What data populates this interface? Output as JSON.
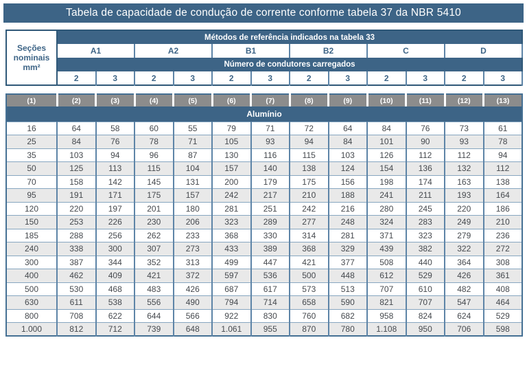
{
  "title": "Tabela de capacidade de condução de corrente conforme tabela 37 da NBR 5410",
  "colors": {
    "accent_blue": "#3d6486",
    "index_gray": "#8c8c8c",
    "row_alt_gray": "#e9e9e9",
    "grid_blue": "#5d84a7",
    "title_text": "#ffffff"
  },
  "header": {
    "sections_lines": [
      "Seções",
      "nominais",
      "mm²"
    ],
    "methods_title": "Métodos de referência indicados na tabela 33",
    "methods": [
      "A1",
      "A2",
      "B1",
      "B2",
      "C",
      "D"
    ],
    "conductors_title": "Número de condutores carregados",
    "conductors": [
      "2",
      "3",
      "2",
      "3",
      "2",
      "3",
      "2",
      "3",
      "2",
      "3",
      "2",
      "3"
    ]
  },
  "table": {
    "column_indices": [
      "(1)",
      "(2)",
      "(3)",
      "(4)",
      "(5)",
      "(6)",
      "(7)",
      "(8)",
      "(9)",
      "(10)",
      "(11)",
      "(12)",
      "(13)"
    ],
    "material_label": "Alumínio",
    "rows": [
      {
        "section": "16",
        "values": [
          "64",
          "58",
          "60",
          "55",
          "79",
          "71",
          "72",
          "64",
          "84",
          "76",
          "73",
          "61"
        ]
      },
      {
        "section": "25",
        "values": [
          "84",
          "76",
          "78",
          "71",
          "105",
          "93",
          "94",
          "84",
          "101",
          "90",
          "93",
          "78"
        ]
      },
      {
        "section": "35",
        "values": [
          "103",
          "94",
          "96",
          "87",
          "130",
          "116",
          "115",
          "103",
          "126",
          "112",
          "112",
          "94"
        ]
      },
      {
        "section": "50",
        "values": [
          "125",
          "113",
          "115",
          "104",
          "157",
          "140",
          "138",
          "124",
          "154",
          "136",
          "132",
          "112"
        ]
      },
      {
        "section": "70",
        "values": [
          "158",
          "142",
          "145",
          "131",
          "200",
          "179",
          "175",
          "156",
          "198",
          "174",
          "163",
          "138"
        ]
      },
      {
        "section": "95",
        "values": [
          "191",
          "171",
          "175",
          "157",
          "242",
          "217",
          "210",
          "188",
          "241",
          "211",
          "193",
          "164"
        ]
      },
      {
        "section": "120",
        "values": [
          "220",
          "197",
          "201",
          "180",
          "281",
          "251",
          "242",
          "216",
          "280",
          "245",
          "220",
          "186"
        ]
      },
      {
        "section": "150",
        "values": [
          "253",
          "226",
          "230",
          "206",
          "323",
          "289",
          "277",
          "248",
          "324",
          "283",
          "249",
          "210"
        ]
      },
      {
        "section": "185",
        "values": [
          "288",
          "256",
          "262",
          "233",
          "368",
          "330",
          "314",
          "281",
          "371",
          "323",
          "279",
          "236"
        ]
      },
      {
        "section": "240",
        "values": [
          "338",
          "300",
          "307",
          "273",
          "433",
          "389",
          "368",
          "329",
          "439",
          "382",
          "322",
          "272"
        ]
      },
      {
        "section": "300",
        "values": [
          "387",
          "344",
          "352",
          "313",
          "499",
          "447",
          "421",
          "377",
          "508",
          "440",
          "364",
          "308"
        ]
      },
      {
        "section": "400",
        "values": [
          "462",
          "409",
          "421",
          "372",
          "597",
          "536",
          "500",
          "448",
          "612",
          "529",
          "426",
          "361"
        ]
      },
      {
        "section": "500",
        "values": [
          "530",
          "468",
          "483",
          "426",
          "687",
          "617",
          "573",
          "513",
          "707",
          "610",
          "482",
          "408"
        ]
      },
      {
        "section": "630",
        "values": [
          "611",
          "538",
          "556",
          "490",
          "794",
          "714",
          "658",
          "590",
          "821",
          "707",
          "547",
          "464"
        ]
      },
      {
        "section": "800",
        "values": [
          "708",
          "622",
          "644",
          "566",
          "922",
          "830",
          "760",
          "682",
          "958",
          "824",
          "624",
          "529"
        ]
      },
      {
        "section": "1.000",
        "values": [
          "812",
          "712",
          "739",
          "648",
          "1.061",
          "955",
          "870",
          "780",
          "1.108",
          "950",
          "706",
          "598"
        ]
      }
    ]
  }
}
